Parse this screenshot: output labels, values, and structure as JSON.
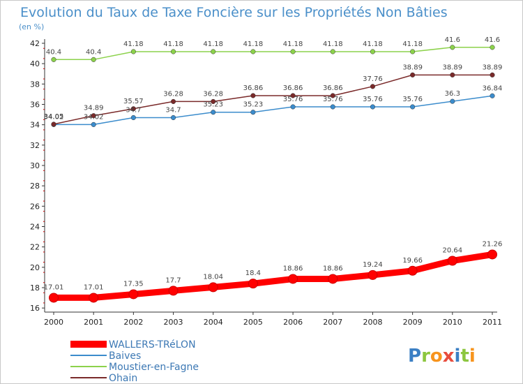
{
  "chart_data": {
    "type": "line",
    "title": "Evolution du Taux de Taxe Foncière sur les Propriétés Non Bâties",
    "ylabel": "(en %)",
    "xlabel": "",
    "x": [
      "2000",
      "2001",
      "2002",
      "2003",
      "2004",
      "2005",
      "2006",
      "2007",
      "2008",
      "2009",
      "2010",
      "2011"
    ],
    "ylim": [
      15.6,
      42
    ],
    "yticks": [
      16,
      18,
      20,
      22,
      24,
      26,
      28,
      30,
      32,
      34,
      36,
      38,
      40,
      42
    ],
    "grid": false,
    "legend_position": "bottom-left",
    "series": [
      {
        "name": "WALLERS-TRéLON",
        "color": "#ff0000",
        "highlight": true,
        "values": [
          17.01,
          17.01,
          17.35,
          17.7,
          18.04,
          18.4,
          18.86,
          18.86,
          19.24,
          19.66,
          20.64,
          21.26
        ],
        "labels": [
          "17.01",
          "17.01",
          "17.35",
          "17.7",
          "18.04",
          "18.4",
          "18.86",
          "18.86",
          "19.24",
          "19.66",
          "20.64",
          "21.26"
        ]
      },
      {
        "name": "Baives",
        "color": "#3b8ccc",
        "values": [
          34.02,
          34.02,
          34.7,
          34.7,
          35.23,
          35.23,
          35.76,
          35.76,
          35.76,
          35.76,
          36.3,
          36.84
        ],
        "labels": [
          "34.02",
          "34.02",
          "34.7",
          "34.7",
          "35.23",
          "35.23",
          "35.76",
          "35.76",
          "35.76",
          "35.76",
          "36.3",
          "36.84"
        ]
      },
      {
        "name": "Moustier-en-Fagne",
        "color": "#8cd24b",
        "values": [
          40.4,
          40.4,
          41.18,
          41.18,
          41.18,
          41.18,
          41.18,
          41.18,
          41.18,
          41.18,
          41.6,
          41.6
        ],
        "labels": [
          "40.4",
          "40.4",
          "41.18",
          "41.18",
          "41.18",
          "41.18",
          "41.18",
          "41.18",
          "41.18",
          "41.18",
          "41.6",
          "41.6"
        ]
      },
      {
        "name": "Ohain",
        "color": "#7a2a2a",
        "values": [
          34.05,
          34.89,
          35.57,
          36.28,
          36.28,
          36.86,
          36.86,
          36.86,
          37.76,
          38.89,
          38.89,
          38.89
        ],
        "labels": [
          "34.05",
          "34.89",
          "35.57",
          "36.28",
          "36.28",
          "36.86",
          "36.86",
          "36.86",
          "37.76",
          "38.89",
          "38.89",
          "38.89"
        ]
      }
    ]
  },
  "logo": {
    "text": "Proxiti"
  }
}
